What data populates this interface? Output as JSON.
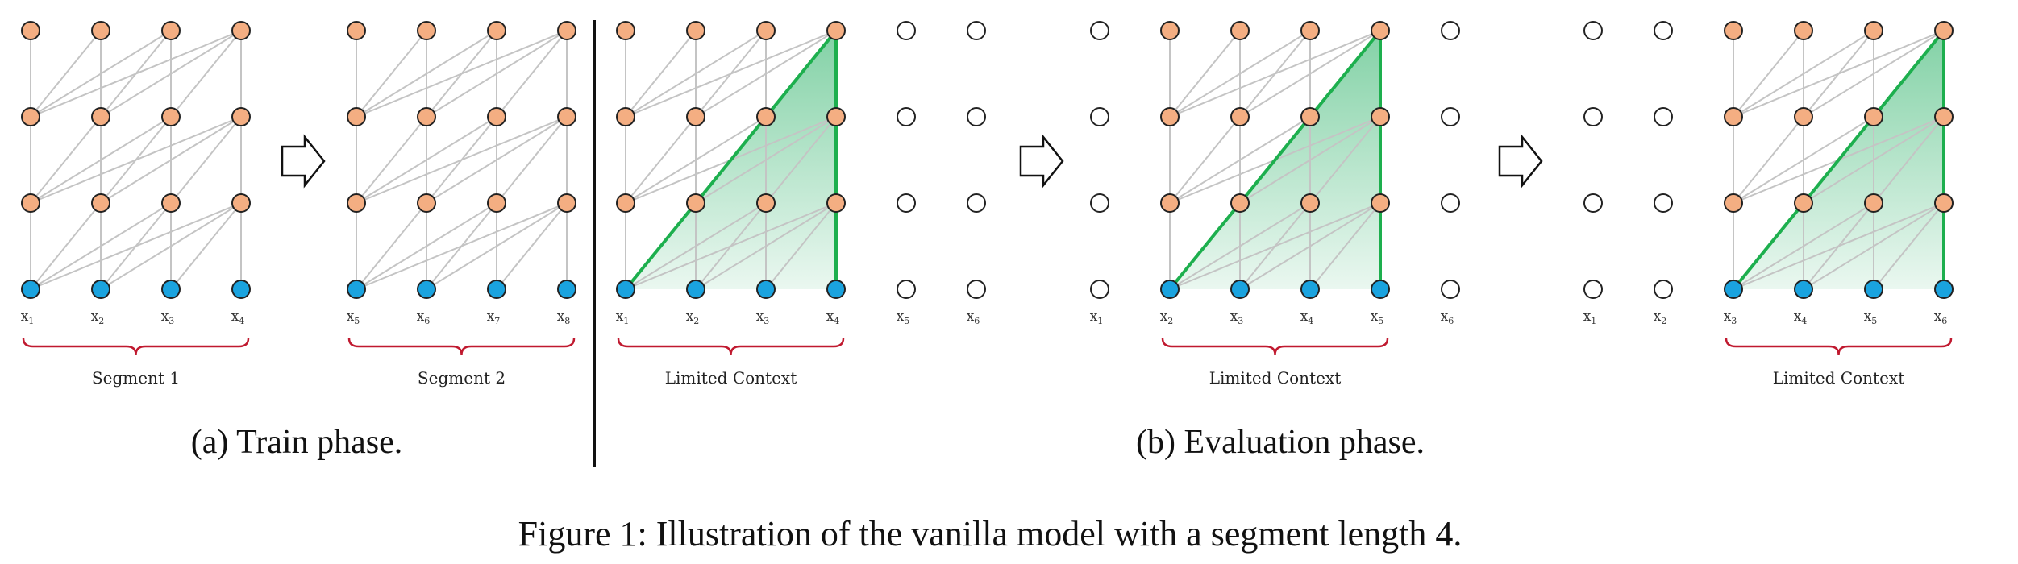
{
  "figure": {
    "caption": "Figure 1: Illustration of the vanilla model with a segment length 4.",
    "subcaption_train": "(a) Train phase.",
    "subcaption_eval": "(b) Evaluation phase."
  },
  "colors": {
    "hidden_node": "#F4AE82",
    "input_node": "#1AA3DF",
    "empty_node": "#FFFFFF",
    "edge": "#C4C4C4",
    "context_line": "#1DAF4E",
    "context_fill": "#2FB36A",
    "brace": "#C0192F"
  },
  "panels": [
    {
      "group": "train",
      "tokens": [
        "x1",
        "x2",
        "x3",
        "x4"
      ],
      "hidden": [
        0,
        1,
        2,
        3
      ],
      "empty": [],
      "brace_cols": [
        0,
        3
      ],
      "brace_label": "Segment 1",
      "context_cols": null
    },
    {
      "group": "train",
      "tokens": [
        "x5",
        "x6",
        "x7",
        "x8"
      ],
      "hidden": [
        0,
        1,
        2,
        3
      ],
      "empty": [],
      "brace_cols": [
        0,
        3
      ],
      "brace_label": "Segment 2",
      "context_cols": null
    },
    {
      "group": "eval",
      "tokens": [
        "x1",
        "x2",
        "x3",
        "x4",
        "x5",
        "x6"
      ],
      "hidden": [
        0,
        1,
        2,
        3
      ],
      "empty": [
        4,
        5
      ],
      "brace_cols": [
        0,
        3
      ],
      "brace_label": "Limited Context",
      "context_cols": [
        0,
        3
      ]
    },
    {
      "group": "eval",
      "tokens": [
        "x1",
        "x2",
        "x3",
        "x4",
        "x5",
        "x6"
      ],
      "hidden": [
        1,
        2,
        3,
        4
      ],
      "empty": [
        0,
        5
      ],
      "brace_cols": [
        1,
        4
      ],
      "brace_label": "Limited Context",
      "context_cols": [
        1,
        4
      ]
    },
    {
      "group": "eval",
      "tokens": [
        "x1",
        "x2",
        "x3",
        "x4",
        "x5",
        "x6"
      ],
      "hidden": [
        2,
        3,
        4,
        5
      ],
      "empty": [
        0,
        1
      ],
      "brace_cols": [
        2,
        5
      ],
      "brace_label": "Limited Context",
      "context_cols": [
        2,
        5
      ]
    }
  ],
  "arrows": [
    "right-arrow",
    "right-arrow",
    "right-arrow"
  ]
}
